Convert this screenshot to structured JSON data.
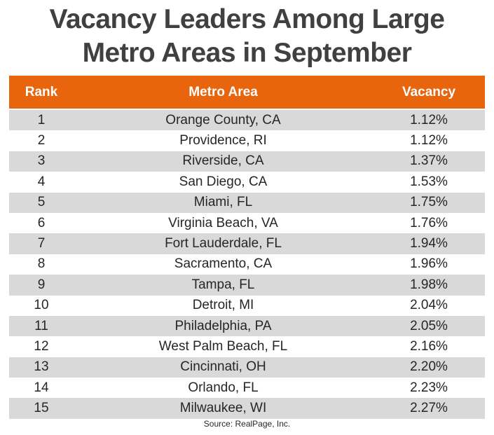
{
  "title": "Vacancy Leaders Among Large Metro Areas in September",
  "table": {
    "header": [
      "Rank",
      "Metro Area",
      "Vacancy"
    ],
    "rows": [
      [
        "1",
        "Orange County, CA",
        "1.12%"
      ],
      [
        "2",
        "Providence, RI",
        "1.12%"
      ],
      [
        "3",
        "Riverside, CA",
        "1.37%"
      ],
      [
        "4",
        "San Diego, CA",
        "1.53%"
      ],
      [
        "5",
        "Miami, FL",
        "1.75%"
      ],
      [
        "6",
        "Virginia Beach, VA",
        "1.76%"
      ],
      [
        "7",
        "Fort Lauderdale, FL",
        "1.94%"
      ],
      [
        "8",
        "Sacramento, CA",
        "1.96%"
      ],
      [
        "9",
        "Tampa, FL",
        "1.98%"
      ],
      [
        "10",
        "Detroit, MI",
        "2.04%"
      ],
      [
        "11",
        "Philadelphia, PA",
        "2.05%"
      ],
      [
        "12",
        "West Palm Beach, FL",
        "2.16%"
      ],
      [
        "13",
        "Cincinnati, OH",
        "2.20%"
      ],
      [
        "14",
        "Orlando, FL",
        "2.23%"
      ],
      [
        "15",
        "Milwaukee, WI",
        "2.27%"
      ]
    ]
  },
  "source": "Source: RealPage, Inc."
}
